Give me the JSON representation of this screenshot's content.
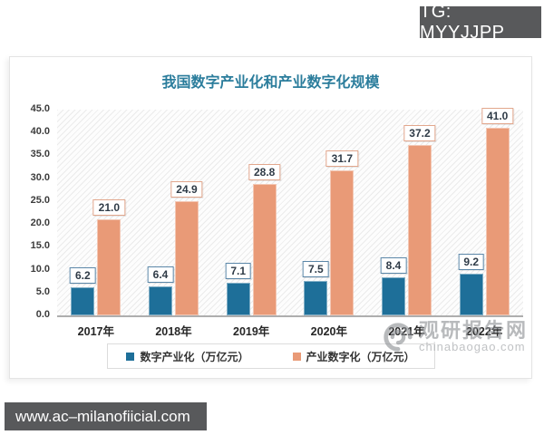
{
  "page": {
    "tg_badge": "TG: MYYJJPP",
    "bottom_bar": "www.ac–milanofiicial.com"
  },
  "watermark": {
    "name": "观研报告网",
    "domain": "chinabaogao.com"
  },
  "chart_data": {
    "type": "bar",
    "title": "我国数字产业化和产业数字化规模",
    "categories": [
      "2017年",
      "2018年",
      "2019年",
      "2020年",
      "2021年",
      "2022年"
    ],
    "series": [
      {
        "name": "数字产业化（万亿元）",
        "color": "#1e6f99",
        "label_border": "#5b87a8",
        "values": [
          6.2,
          6.4,
          7.1,
          7.5,
          8.4,
          9.2
        ]
      },
      {
        "name": "产业数字化（万亿元）",
        "color": "#e99a77",
        "label_border": "#e2a78d",
        "values": [
          21.0,
          24.9,
          28.8,
          31.7,
          37.2,
          41.0
        ]
      }
    ],
    "ylim": [
      0,
      45
    ],
    "ytick_step": 5,
    "yticks": [
      "45.0",
      "40.0",
      "35.0",
      "30.0",
      "25.0",
      "20.0",
      "15.0",
      "10.0",
      "5.0",
      "0.0"
    ],
    "grid": false,
    "legend_position": "bottom",
    "plot_background": "diagonal-hatch",
    "value_label_decimals": 1
  }
}
